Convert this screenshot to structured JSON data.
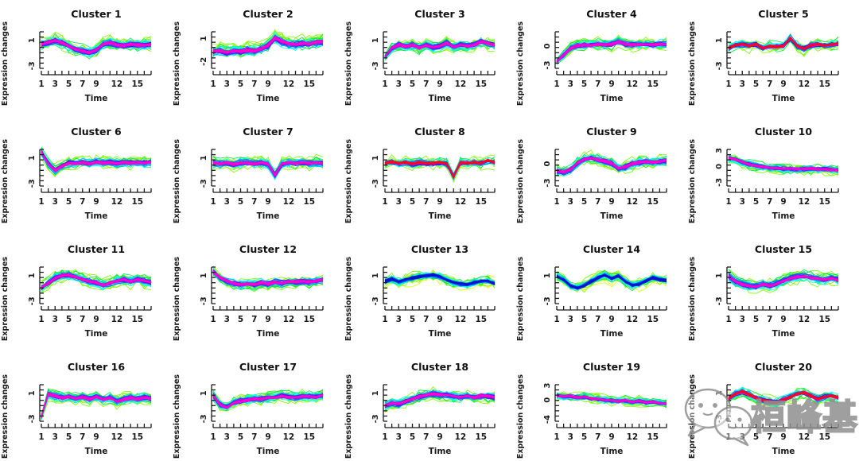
{
  "page": {
    "background": "#ffffff",
    "grid_rows": 4,
    "grid_cols": 5
  },
  "axis": {
    "x_label": "Time",
    "y_label": "Expression changes",
    "n_time_points": 17,
    "x_tick_labels": [
      "1",
      "3",
      "5",
      "7",
      "9",
      "12",
      "15"
    ],
    "x_tick_label_indices": [
      0,
      2,
      4,
      6,
      8,
      11,
      14
    ],
    "text_color": "#1a1a1a"
  },
  "styles": {
    "magenta": [
      {
        "color": "#7CFC00",
        "n": 9,
        "amp": 1.05
      },
      {
        "color": "#00E650",
        "n": 8,
        "amp": 0.85
      },
      {
        "color": "#00FFFF",
        "n": 9,
        "amp": 0.65
      },
      {
        "color": "#00AAFF",
        "n": 8,
        "amp": 0.5
      },
      {
        "color": "#2244FF",
        "n": 9,
        "amp": 0.4
      },
      {
        "color": "#7700EE",
        "n": 7,
        "amp": 0.3
      },
      {
        "color": "#CC00FF",
        "n": 6,
        "amp": 0.24
      },
      {
        "color": "#FF00CC",
        "n": 9,
        "amp": 0.17
      }
    ],
    "red": [
      {
        "color": "#7CFC00",
        "n": 7,
        "amp": 1.0
      },
      {
        "color": "#00E650",
        "n": 6,
        "amp": 0.8
      },
      {
        "color": "#00FFFF",
        "n": 7,
        "amp": 0.6
      },
      {
        "color": "#0066FF",
        "n": 8,
        "amp": 0.45
      },
      {
        "color": "#4400EE",
        "n": 7,
        "amp": 0.34
      },
      {
        "color": "#BB00FF",
        "n": 6,
        "amp": 0.26
      },
      {
        "color": "#FF00AA",
        "n": 7,
        "amp": 0.2
      },
      {
        "color": "#FF0022",
        "n": 14,
        "amp": 0.16
      }
    ],
    "blue": [
      {
        "color": "#DDFF00",
        "n": 4,
        "amp": 1.1
      },
      {
        "color": "#7CFC00",
        "n": 9,
        "amp": 0.9
      },
      {
        "color": "#00E650",
        "n": 8,
        "amp": 0.7
      },
      {
        "color": "#00FFEE",
        "n": 9,
        "amp": 0.5
      },
      {
        "color": "#00AAFF",
        "n": 8,
        "amp": 0.36
      },
      {
        "color": "#0044FF",
        "n": 10,
        "amp": 0.26
      },
      {
        "color": "#0011CC",
        "n": 6,
        "amp": 0.2
      }
    ]
  },
  "chart_data": [
    {
      "type": "line",
      "title": "Cluster 1",
      "xlabel": "Time",
      "ylabel": "Expression changes",
      "style": "magenta",
      "ylim": [
        -3.4,
        2.6
      ],
      "y_tick_labels": [
        "-3",
        "1"
      ],
      "y_tick_values": [
        -3,
        1
      ],
      "mean_series": [
        0.4,
        0.7,
        1.0,
        0.6,
        0.1,
        -0.4,
        -0.6,
        -0.9,
        -0.5,
        0.4,
        0.6,
        0.3,
        0.2,
        0.4,
        0.3,
        0.2,
        0.4
      ]
    },
    {
      "type": "line",
      "title": "Cluster 2",
      "xlabel": "Time",
      "ylabel": "Expression changes",
      "style": "magenta",
      "ylim": [
        -2.9,
        2.1
      ],
      "y_tick_labels": [
        "-2",
        "1"
      ],
      "y_tick_values": [
        -2,
        1
      ],
      "mean_series": [
        -0.7,
        -0.6,
        -0.8,
        -0.6,
        -0.7,
        -0.5,
        -0.6,
        -0.3,
        0.1,
        1.1,
        0.6,
        0.3,
        0.2,
        0.4,
        0.3,
        0.5,
        0.6
      ]
    },
    {
      "type": "line",
      "title": "Cluster 3",
      "xlabel": "Time",
      "ylabel": "Expression changes",
      "style": "magenta",
      "ylim": [
        -3.4,
        2.6
      ],
      "y_tick_labels": [
        "-3",
        "1"
      ],
      "y_tick_values": [
        -3,
        1
      ],
      "pinch_start": true,
      "mean_series": [
        -1.6,
        -0.2,
        0.3,
        0.0,
        0.3,
        -0.2,
        0.2,
        -0.1,
        0.1,
        0.6,
        0.0,
        0.3,
        0.1,
        0.3,
        0.8,
        0.5,
        0.2
      ]
    },
    {
      "type": "line",
      "title": "Cluster 4",
      "xlabel": "Time",
      "ylabel": "Expression changes",
      "style": "magenta",
      "ylim": [
        -3.5,
        2.5
      ],
      "y_tick_labels": [
        "-3",
        "0"
      ],
      "y_tick_values": [
        -3,
        0
      ],
      "pinch_start": true,
      "mean_series": [
        -2.4,
        -1.4,
        -0.4,
        0.1,
        0.2,
        0.1,
        0.3,
        0.2,
        0.3,
        0.7,
        0.3,
        0.2,
        0.2,
        0.3,
        0.2,
        0.3,
        0.3
      ]
    },
    {
      "type": "line",
      "title": "Cluster 5",
      "xlabel": "Time",
      "ylabel": "Expression changes",
      "style": "red",
      "ylim": [
        -3.4,
        2.6
      ],
      "y_tick_labels": [
        "-3",
        "1"
      ],
      "y_tick_values": [
        -3,
        1
      ],
      "mean_series": [
        -0.2,
        0.3,
        0.4,
        0.1,
        0.4,
        -0.2,
        0.1,
        0.0,
        0.1,
        1.4,
        0.1,
        -0.3,
        0.2,
        0.4,
        0.2,
        0.3,
        0.5
      ]
    },
    {
      "type": "line",
      "title": "Cluster 6",
      "xlabel": "Time",
      "ylabel": "Expression changes",
      "style": "magenta",
      "ylim": [
        -3.4,
        2.6
      ],
      "y_tick_labels": [
        "-3",
        "1"
      ],
      "y_tick_values": [
        -3,
        1
      ],
      "mean_series": [
        1.9,
        0.1,
        -1.0,
        -0.3,
        0.2,
        0.1,
        0.3,
        0.1,
        0.4,
        0.2,
        0.3,
        0.1,
        0.3,
        0.2,
        0.3,
        0.2,
        0.3
      ]
    },
    {
      "type": "line",
      "title": "Cluster 7",
      "xlabel": "Time",
      "ylabel": "Expression changes",
      "style": "magenta",
      "ylim": [
        -3.4,
        2.6
      ],
      "y_tick_labels": [
        "-3",
        "1"
      ],
      "y_tick_values": [
        -3,
        1
      ],
      "mean_series": [
        0.3,
        0.1,
        0.3,
        0.0,
        0.2,
        0.3,
        0.1,
        0.3,
        0.1,
        -1.7,
        0.1,
        0.3,
        0.2,
        0.3,
        0.2,
        0.3,
        0.2
      ]
    },
    {
      "type": "line",
      "title": "Cluster 8",
      "xlabel": "Time",
      "ylabel": "Expression changes",
      "style": "red",
      "ylim": [
        -3.4,
        2.6
      ],
      "y_tick_labels": [
        "-3",
        "1"
      ],
      "y_tick_values": [
        -3,
        1
      ],
      "mean_series": [
        0.2,
        0.4,
        0.2,
        0.3,
        0.1,
        0.3,
        0.2,
        0.2,
        0.3,
        0.1,
        -1.9,
        0.3,
        0.2,
        0.3,
        0.2,
        0.6,
        0.3
      ]
    },
    {
      "type": "line",
      "title": "Cluster 9",
      "xlabel": "Time",
      "ylabel": "Expression changes",
      "style": "magenta",
      "ylim": [
        -3.5,
        2.5
      ],
      "y_tick_labels": [
        "-3",
        "0"
      ],
      "y_tick_values": [
        -3,
        0
      ],
      "mean_series": [
        -1.1,
        -1.3,
        -0.9,
        0.1,
        0.7,
        0.9,
        0.6,
        0.4,
        0.1,
        -0.7,
        -0.5,
        0.0,
        0.2,
        0.3,
        0.2,
        0.3,
        0.5
      ]
    },
    {
      "type": "line",
      "title": "Cluster 10",
      "xlabel": "Time",
      "ylabel": "Expression changes",
      "style": "magenta",
      "ylim": [
        -3.7,
        3.5
      ],
      "y_tick_labels": [
        "-3",
        "0",
        "3"
      ],
      "y_tick_values": [
        -3,
        0,
        3
      ],
      "mean_series": [
        1.6,
        1.3,
        0.8,
        0.4,
        0.1,
        -0.1,
        -0.2,
        -0.3,
        -0.4,
        -0.4,
        -0.5,
        -0.5,
        -0.4,
        -0.6,
        -0.5,
        -0.6,
        -0.7
      ]
    },
    {
      "type": "line",
      "title": "Cluster 11",
      "xlabel": "Time",
      "ylabel": "Expression changes",
      "style": "magenta",
      "ylim": [
        -3.4,
        2.6
      ],
      "y_tick_labels": [
        "-3",
        "1"
      ],
      "y_tick_values": [
        -3,
        1
      ],
      "mean_series": [
        -0.9,
        -0.2,
        0.6,
        1.0,
        1.1,
        0.8,
        0.4,
        0.1,
        -0.1,
        -0.5,
        -0.2,
        0.2,
        0.4,
        0.1,
        0.4,
        0.2,
        -0.1
      ]
    },
    {
      "type": "line",
      "title": "Cluster 12",
      "xlabel": "Time",
      "ylabel": "Expression changes",
      "style": "magenta",
      "ylim": [
        -3.4,
        2.6
      ],
      "y_tick_labels": [
        "-3",
        "1"
      ],
      "y_tick_values": [
        -3,
        1
      ],
      "mean_series": [
        1.6,
        0.7,
        0.1,
        -0.2,
        -0.4,
        -0.2,
        -0.4,
        -0.1,
        -0.3,
        0.0,
        -0.2,
        0.1,
        0.0,
        0.1,
        0.0,
        0.2,
        0.4
      ]
    },
    {
      "type": "line",
      "title": "Cluster 13",
      "xlabel": "Time",
      "ylabel": "Expression changes",
      "style": "blue",
      "ylim": [
        -3.4,
        2.6
      ],
      "y_tick_labels": [
        "-3",
        "1"
      ],
      "y_tick_values": [
        -3,
        1
      ],
      "mean_series": [
        0.1,
        0.5,
        0.0,
        0.4,
        0.6,
        0.8,
        1.0,
        1.1,
        0.8,
        0.3,
        -0.1,
        -0.3,
        -0.4,
        -0.1,
        0.1,
        0.2,
        -0.2
      ]
    },
    {
      "type": "line",
      "title": "Cluster 14",
      "xlabel": "Time",
      "ylabel": "Expression changes",
      "style": "blue",
      "ylim": [
        -3.4,
        2.6
      ],
      "y_tick_labels": [
        "-3",
        "1"
      ],
      "y_tick_values": [
        -3,
        1
      ],
      "mean_series": [
        0.9,
        0.4,
        -0.6,
        -0.9,
        -0.6,
        0.1,
        0.7,
        1.1,
        0.6,
        1.0,
        0.1,
        -0.5,
        -0.3,
        0.2,
        0.7,
        0.4,
        0.2
      ]
    },
    {
      "type": "line",
      "title": "Cluster 15",
      "xlabel": "Time",
      "ylabel": "Expression changes",
      "style": "magenta",
      "ylim": [
        -3.4,
        2.6
      ],
      "y_tick_labels": [
        "-3",
        "1"
      ],
      "y_tick_values": [
        -3,
        1
      ],
      "mean_series": [
        0.9,
        0.1,
        -0.4,
        -0.6,
        -0.7,
        -0.4,
        -0.6,
        -0.3,
        0.2,
        0.6,
        0.8,
        0.9,
        0.7,
        0.5,
        0.4,
        0.6,
        0.3
      ]
    },
    {
      "type": "line",
      "title": "Cluster 16",
      "xlabel": "Time",
      "ylabel": "Expression changes",
      "style": "magenta",
      "ylim": [
        -3.4,
        2.6
      ],
      "y_tick_labels": [
        "-3",
        "1"
      ],
      "y_tick_values": [
        -3,
        1
      ],
      "pinch_start": true,
      "mean_series": [
        -2.7,
        0.9,
        0.6,
        0.3,
        0.5,
        0.2,
        0.4,
        0.1,
        0.5,
        0.0,
        0.3,
        -0.3,
        0.0,
        0.3,
        0.1,
        0.4,
        0.1
      ]
    },
    {
      "type": "line",
      "title": "Cluster 17",
      "xlabel": "Time",
      "ylabel": "Expression changes",
      "style": "magenta",
      "ylim": [
        -3.4,
        2.6
      ],
      "y_tick_labels": [
        "-3",
        "1"
      ],
      "y_tick_values": [
        -3,
        1
      ],
      "mean_series": [
        0.6,
        -0.8,
        -1.2,
        -0.5,
        -0.2,
        -0.1,
        0.1,
        0.1,
        0.3,
        0.3,
        0.6,
        0.4,
        0.3,
        0.5,
        0.5,
        0.4,
        0.7
      ]
    },
    {
      "type": "line",
      "title": "Cluster 18",
      "xlabel": "Time",
      "ylabel": "Expression changes",
      "style": "magenta",
      "ylim": [
        -3.4,
        2.6
      ],
      "y_tick_labels": [
        "-3",
        "1"
      ],
      "y_tick_values": [
        -3,
        1
      ],
      "mean_series": [
        -0.9,
        -0.6,
        -0.7,
        -0.3,
        0.1,
        0.5,
        0.7,
        0.9,
        0.8,
        0.7,
        0.5,
        0.4,
        0.6,
        0.3,
        0.6,
        0.5,
        0.4
      ]
    },
    {
      "type": "line",
      "title": "Cluster 19",
      "xlabel": "Time",
      "ylabel": "Expression changes",
      "style": "magenta",
      "ylim": [
        -4.4,
        3.5
      ],
      "y_tick_labels": [
        "-4",
        "0",
        "3"
      ],
      "y_tick_values": [
        -4,
        0,
        3
      ],
      "mean_series": [
        0.9,
        0.7,
        0.8,
        0.5,
        0.7,
        0.3,
        0.2,
        0.0,
        -0.1,
        -0.3,
        -0.1,
        -0.4,
        -0.2,
        -0.5,
        -0.4,
        -0.6,
        -0.8
      ]
    },
    {
      "type": "line",
      "title": "Cluster 20",
      "xlabel": "Time",
      "ylabel": "Expression changes",
      "style": "red",
      "ylim": [
        -3.4,
        2.6
      ],
      "y_tick_labels": [
        "-3",
        "1"
      ],
      "y_tick_values": [
        -3,
        1
      ],
      "mean_series": [
        0.2,
        0.9,
        1.3,
        0.8,
        0.3,
        -0.1,
        -0.3,
        -0.4,
        0.0,
        0.4,
        0.9,
        1.1,
        0.6,
        0.1,
        0.4,
        0.6,
        0.3
      ]
    }
  ],
  "watermark": {
    "text": "桓峰基因",
    "icon": "wechat-logo-icon",
    "color": "#8f8f8f"
  }
}
